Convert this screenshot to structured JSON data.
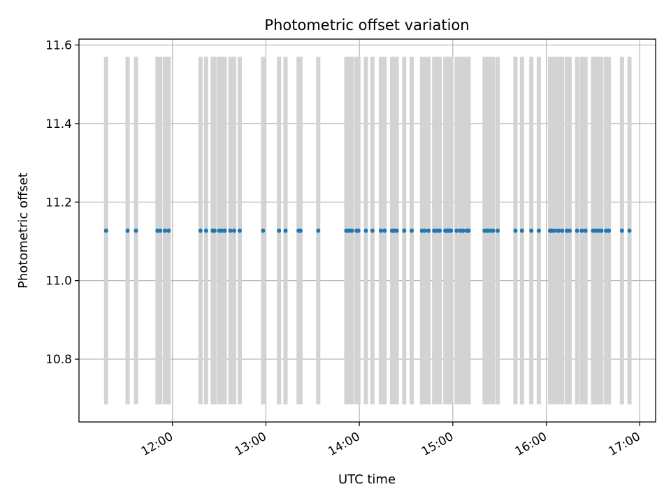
{
  "chart_data": {
    "type": "scatter",
    "title": "Photometric offset variation",
    "xlabel": "UTC time",
    "ylabel": "Photometric offset",
    "x_axis_kind": "time (hours UTC)",
    "xlim": [
      11.0,
      17.17
    ],
    "ylim": [
      10.64,
      11.615
    ],
    "x_ticks": [
      12,
      13,
      14,
      15,
      16,
      17
    ],
    "x_tick_labels": [
      "12:00",
      "13:00",
      "14:00",
      "15:00",
      "16:00",
      "17:00"
    ],
    "y_ticks": [
      10.8,
      11.0,
      11.2,
      11.4,
      11.6
    ],
    "y_tick_labels": [
      "10.8",
      "11.0",
      "11.2",
      "11.4",
      "11.6"
    ],
    "grid": true,
    "colors": {
      "points": "#1f77b4",
      "bands": "#d3d3d3",
      "grid": "#b0b0b0"
    },
    "error_band": {
      "y_low": 10.685,
      "y_high": 11.57
    },
    "points_y": 11.127,
    "x": [
      11.29,
      11.52,
      11.61,
      11.84,
      11.87,
      11.92,
      11.96,
      12.3,
      12.36,
      12.43,
      12.45,
      12.5,
      12.53,
      12.56,
      12.62,
      12.66,
      12.72,
      12.97,
      13.14,
      13.21,
      13.35,
      13.37,
      13.56,
      13.86,
      13.89,
      13.92,
      13.97,
      13.99,
      14.07,
      14.14,
      14.23,
      14.27,
      14.35,
      14.37,
      14.4,
      14.48,
      14.56,
      14.67,
      14.7,
      14.74,
      14.8,
      14.83,
      14.86,
      14.92,
      14.94,
      14.96,
      14.98,
      15.04,
      15.08,
      15.11,
      15.15,
      15.17,
      15.34,
      15.37,
      15.4,
      15.43,
      15.48,
      15.67,
      15.74,
      15.84,
      15.92,
      16.04,
      16.06,
      16.09,
      16.13,
      16.17,
      16.22,
      16.25,
      16.33,
      16.38,
      16.42,
      16.5,
      16.53,
      16.56,
      16.59,
      16.64,
      16.67,
      16.81,
      16.89
    ]
  }
}
